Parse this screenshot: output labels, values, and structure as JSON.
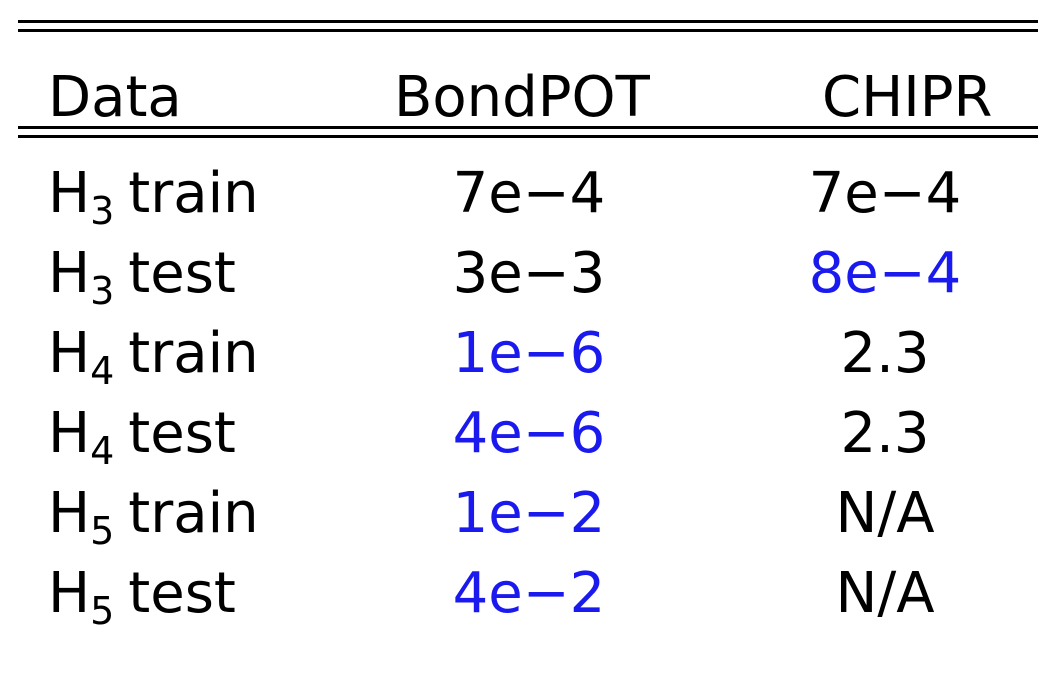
{
  "table": {
    "headers": [
      "Data",
      "BondPOT",
      "CHIPR"
    ],
    "rows": [
      {
        "molecule": "H",
        "subscript": "3",
        "split": "train",
        "bondpot": "7e−4",
        "chipr": "7e−4",
        "bondpot_highlight": false,
        "chipr_highlight": false
      },
      {
        "molecule": "H",
        "subscript": "3",
        "split": "test",
        "bondpot": "3e−3",
        "chipr": "8e−4",
        "bondpot_highlight": false,
        "chipr_highlight": true
      },
      {
        "molecule": "H",
        "subscript": "4",
        "split": "train",
        "bondpot": "1e−6",
        "chipr": "2.3",
        "bondpot_highlight": true,
        "chipr_highlight": false
      },
      {
        "molecule": "H",
        "subscript": "4",
        "split": "test",
        "bondpot": "4e−6",
        "chipr": "2.3",
        "bondpot_highlight": true,
        "chipr_highlight": false
      },
      {
        "molecule": "H",
        "subscript": "5",
        "split": "train",
        "bondpot": "1e−2",
        "chipr": "N/A",
        "bondpot_highlight": true,
        "chipr_highlight": false
      },
      {
        "molecule": "H",
        "subscript": "5",
        "split": "test",
        "bondpot": "4e−2",
        "chipr": "N/A",
        "bondpot_highlight": true,
        "chipr_highlight": false
      }
    ],
    "colors": {
      "highlight": "#1a1aee",
      "text": "#000000",
      "rule": "#000000"
    }
  }
}
